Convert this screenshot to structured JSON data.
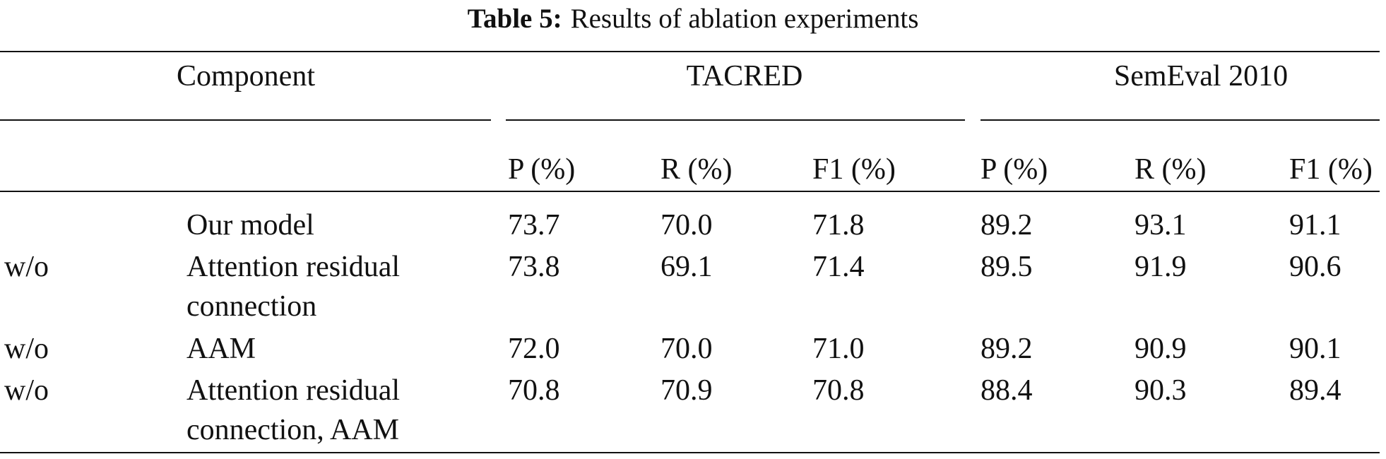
{
  "caption": {
    "label": "Table 5:",
    "text": "Results of ablation experiments"
  },
  "table": {
    "group_header": [
      "Component",
      "TACRED",
      "SemEval 2010"
    ],
    "columns": [
      "P (%)",
      "R (%)",
      "F1 (%)",
      "P (%)",
      "R (%)",
      "F1 (%)"
    ],
    "rows": [
      {
        "prefix": null,
        "component": "Our model",
        "values": [
          "73.7",
          "70.0",
          "71.8",
          "89.2",
          "93.1",
          "91.1"
        ]
      },
      {
        "prefix": "w/o",
        "component": "Attention residual connection",
        "values": [
          "73.8",
          "69.1",
          "71.4",
          "89.5",
          "91.9",
          "90.6"
        ]
      },
      {
        "prefix": "w/o",
        "component": "AAM",
        "values": [
          "72.0",
          "70.0",
          "71.0",
          "89.2",
          "90.9",
          "90.1"
        ]
      },
      {
        "prefix": "w/o",
        "component": "Attention residual connection, AAM",
        "values": [
          "70.8",
          "70.9",
          "70.8",
          "88.4",
          "90.3",
          "89.4"
        ]
      }
    ]
  }
}
